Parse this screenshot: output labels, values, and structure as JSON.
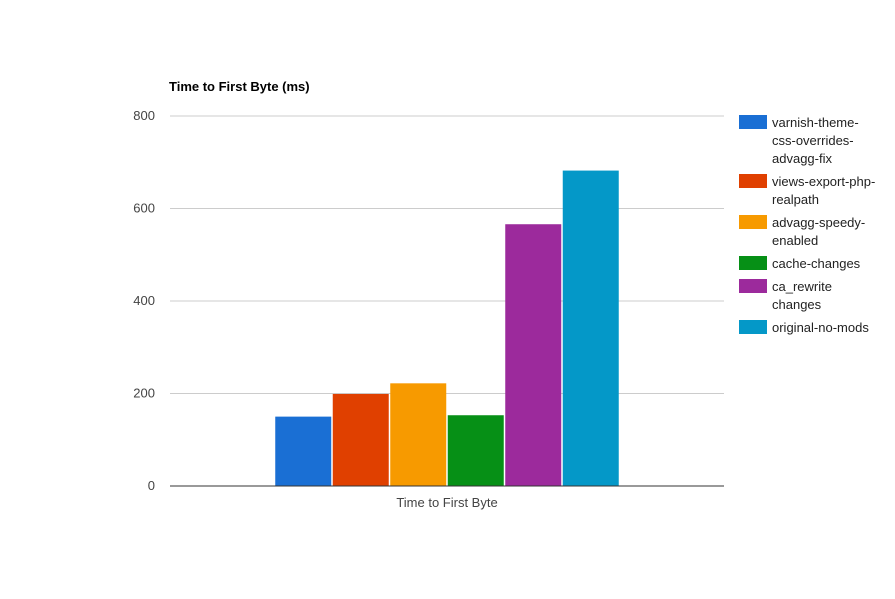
{
  "chart_data": {
    "type": "bar",
    "title": "Time to First Byte (ms)",
    "categories": [
      "Time to First Byte"
    ],
    "ylim": [
      0,
      800
    ],
    "yticks": [
      0,
      200,
      400,
      600,
      800
    ],
    "grid": true,
    "legend_position": "right",
    "series": [
      {
        "name_lines": [
          "varnish-theme-",
          "css-overrides-",
          "advagg-fix"
        ],
        "color": "#1a6fd4",
        "values": [
          150
        ]
      },
      {
        "name_lines": [
          "views-export-php-",
          "realpath"
        ],
        "color": "#e04000",
        "values": [
          199
        ]
      },
      {
        "name_lines": [
          "advagg-speedy-",
          "enabled"
        ],
        "color": "#f79a00",
        "values": [
          222
        ]
      },
      {
        "name_lines": [
          "cache-changes"
        ],
        "color": "#069016",
        "values": [
          153
        ]
      },
      {
        "name_lines": [
          "ca_rewrite",
          "changes"
        ],
        "color": "#9c2a9c",
        "values": [
          566
        ]
      },
      {
        "name_lines": [
          "original-no-mods"
        ],
        "color": "#0498c8",
        "values": [
          682
        ]
      }
    ]
  }
}
